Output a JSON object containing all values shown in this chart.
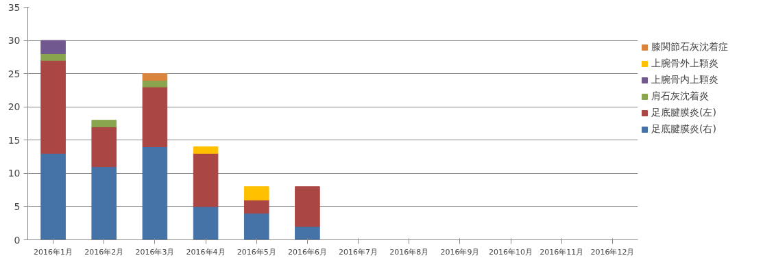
{
  "chart_data": {
    "type": "bar",
    "stacked": true,
    "categories": [
      "2016年1月",
      "2016年2月",
      "2016年3月",
      "2016年4月",
      "2016年5月",
      "2016年6月",
      "2016年7月",
      "2016年8月",
      "2016年9月",
      "2016年10月",
      "2016年11月",
      "2016年12月"
    ],
    "series": [
      {
        "name": "足底腱膜炎(右)",
        "color": "#4572a7",
        "values": [
          13,
          11,
          14,
          5,
          4,
          2,
          null,
          null,
          null,
          null,
          null,
          null
        ]
      },
      {
        "name": "足底腱膜炎(左)",
        "color": "#aa4643",
        "values": [
          14,
          6,
          9,
          8,
          2,
          6,
          null,
          null,
          null,
          null,
          null,
          null
        ]
      },
      {
        "name": "肩石灰沈着炎",
        "color": "#89a54e",
        "values": [
          1,
          1,
          1,
          null,
          null,
          null,
          null,
          null,
          null,
          null,
          null,
          null
        ]
      },
      {
        "name": "上腕骨内上顆炎",
        "color": "#71588f",
        "values": [
          2,
          null,
          null,
          null,
          null,
          null,
          null,
          null,
          null,
          null,
          null,
          null
        ]
      },
      {
        "name": "上腕骨外上顆炎",
        "color": "#ffc000",
        "values": [
          null,
          null,
          null,
          1,
          2,
          null,
          null,
          null,
          null,
          null,
          null,
          null
        ]
      },
      {
        "name": "膝関節石灰沈着症",
        "color": "#db843d",
        "values": [
          null,
          null,
          1,
          null,
          null,
          null,
          null,
          null,
          null,
          null,
          null,
          null
        ]
      }
    ],
    "ylim": [
      0,
      35
    ],
    "yticks": [
      0,
      5,
      10,
      15,
      20,
      25,
      30,
      35
    ],
    "grid": "y",
    "legend": "right"
  }
}
